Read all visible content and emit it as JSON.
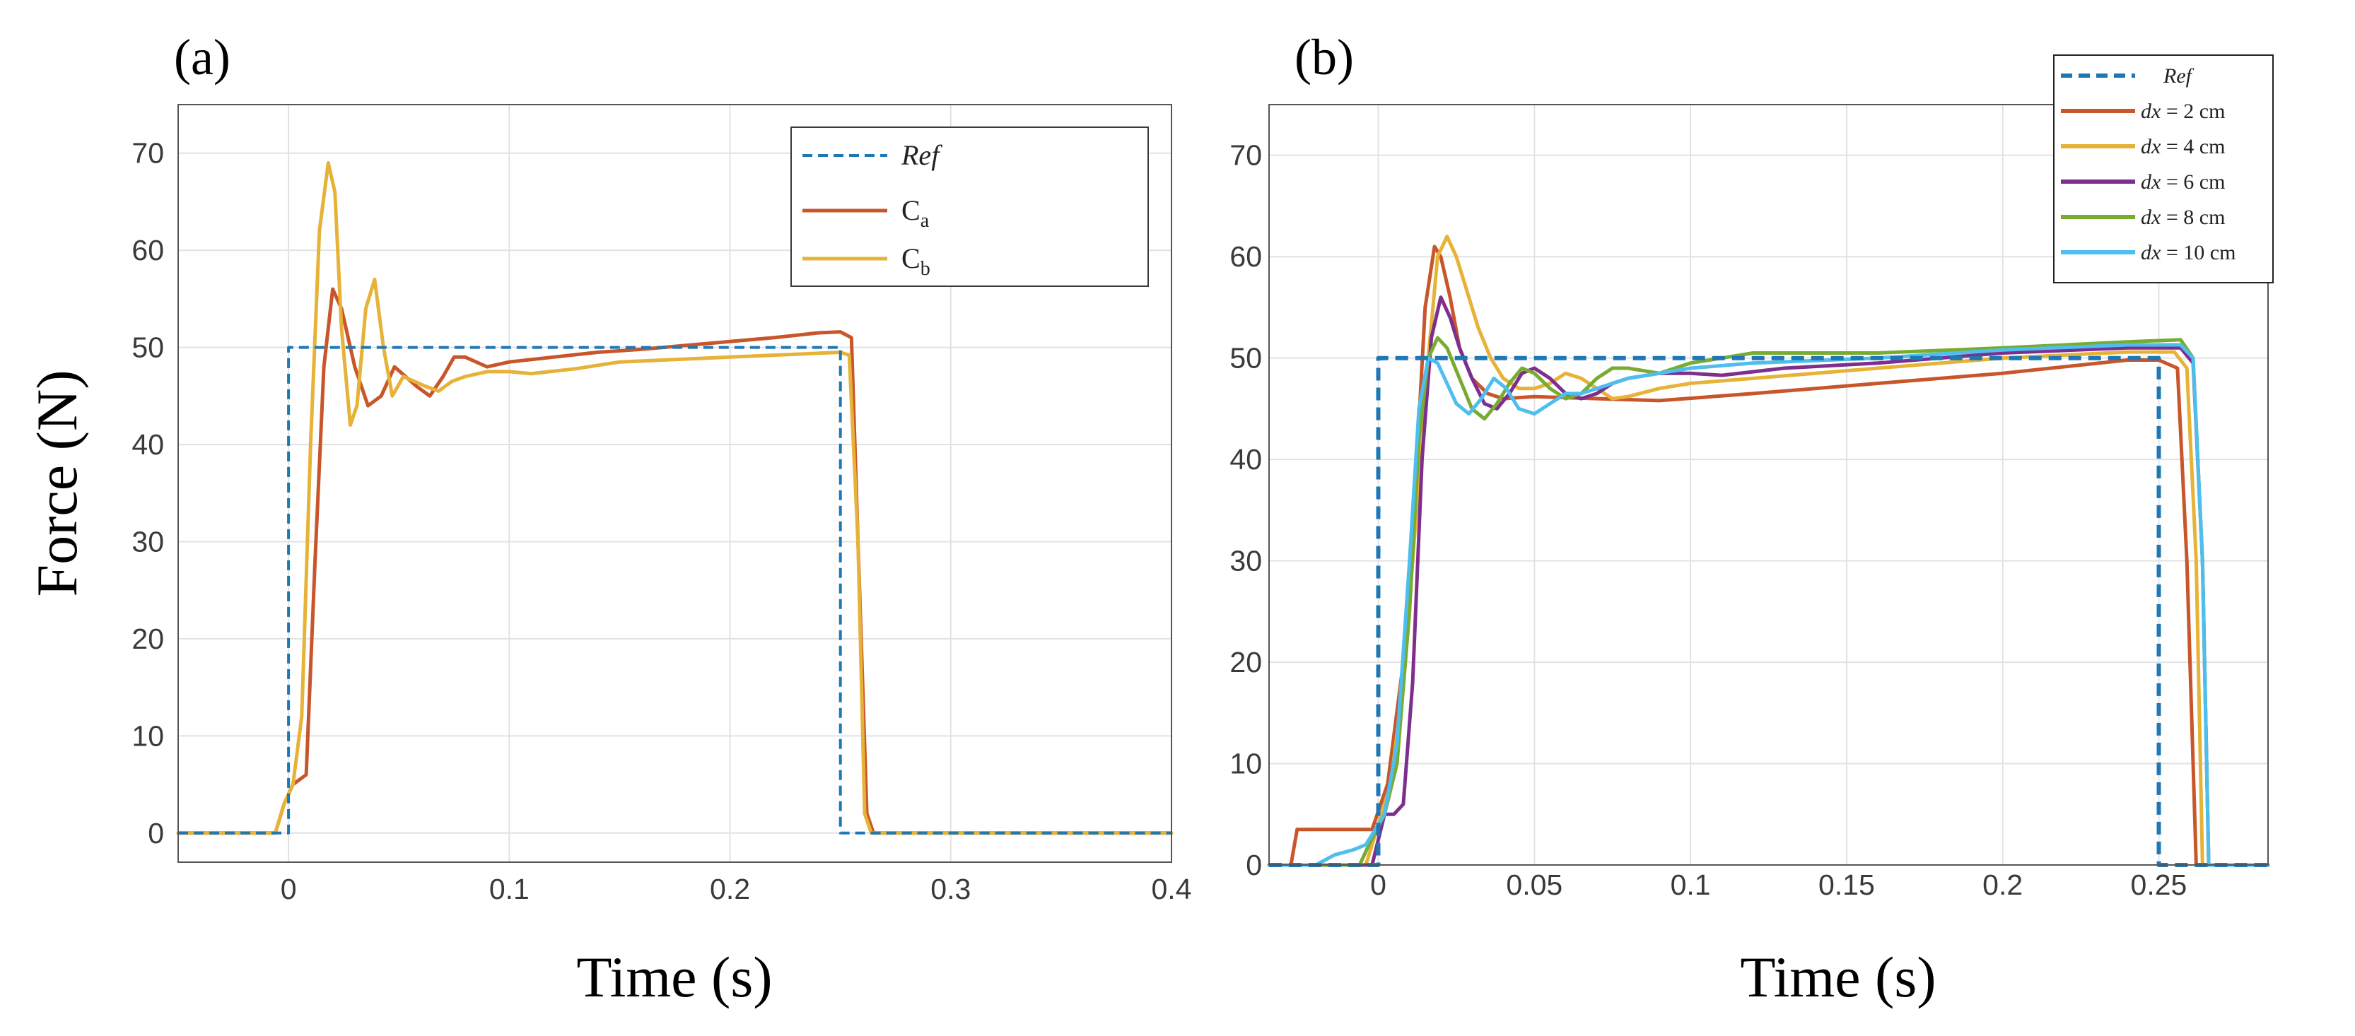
{
  "colors": {
    "ref": "#1f77b4",
    "orange": "#c8562a",
    "yellow": "#e6b338",
    "purple": "#7e2f8e",
    "green": "#77ac30",
    "cyan": "#4dbeee",
    "grid": "#e2e2e2",
    "axis": "#555555"
  },
  "chart_data": [
    {
      "type": "line",
      "panel_label": "(a)",
      "xlabel": "Time (s)",
      "ylabel": "Force (N)",
      "xlim": [
        -0.05,
        0.4
      ],
      "ylim": [
        -3,
        75
      ],
      "xticks": [
        0,
        0.1,
        0.2,
        0.3,
        0.4
      ],
      "xtick_labels": [
        "0",
        "0.1",
        "0.2",
        "0.3",
        "0.4"
      ],
      "yticks": [
        0,
        10,
        20,
        30,
        40,
        50,
        60,
        70
      ],
      "ytick_labels": [
        "0",
        "10",
        "20",
        "30",
        "40",
        "50",
        "60",
        "70"
      ],
      "grid": true,
      "legend_position": "top-right",
      "series": [
        {
          "name": "Ref",
          "legend": "Ref",
          "color_key": "ref",
          "dash": true,
          "width": 4,
          "italic": true,
          "x": [
            -0.05,
            0,
            0,
            0.25,
            0.25,
            0.4
          ],
          "y": [
            0,
            0,
            50,
            50,
            0,
            0
          ]
        },
        {
          "name": "Ca",
          "legend": "C",
          "sub": "a",
          "color_key": "orange",
          "dash": false,
          "width": 5,
          "x": [
            -0.05,
            -0.006,
            -0.002,
            0.002,
            0.008,
            0.012,
            0.016,
            0.02,
            0.024,
            0.03,
            0.036,
            0.042,
            0.048,
            0.053,
            0.058,
            0.064,
            0.07,
            0.075,
            0.08,
            0.09,
            0.1,
            0.12,
            0.14,
            0.16,
            0.18,
            0.2,
            0.22,
            0.24,
            0.25,
            0.255,
            0.258,
            0.262,
            0.265,
            0.4
          ],
          "y": [
            0,
            0,
            3,
            5,
            6,
            28,
            48,
            56,
            54,
            48,
            44,
            45,
            48,
            47,
            46,
            45,
            47,
            49,
            49,
            48,
            48.5,
            49,
            49.5,
            49.8,
            50.2,
            50.6,
            51,
            51.5,
            51.6,
            51,
            30,
            2,
            0,
            0
          ]
        },
        {
          "name": "Cb",
          "legend": "C",
          "sub": "b",
          "color_key": "yellow",
          "dash": false,
          "width": 5,
          "x": [
            -0.05,
            -0.006,
            -0.002,
            0.002,
            0.006,
            0.01,
            0.014,
            0.018,
            0.021,
            0.024,
            0.028,
            0.031,
            0.035,
            0.039,
            0.043,
            0.047,
            0.052,
            0.057,
            0.062,
            0.068,
            0.074,
            0.08,
            0.09,
            0.1,
            0.11,
            0.13,
            0.15,
            0.2,
            0.25,
            0.254,
            0.258,
            0.261,
            0.264,
            0.4
          ],
          "y": [
            0,
            0,
            3,
            5,
            12,
            40,
            62,
            69,
            66,
            52,
            42,
            44,
            54,
            57,
            50,
            45,
            47,
            46.5,
            46,
            45.5,
            46.5,
            47,
            47.5,
            47.5,
            47.3,
            47.8,
            48.5,
            49,
            49.5,
            49.2,
            30,
            2,
            0,
            0
          ]
        }
      ]
    },
    {
      "type": "line",
      "panel_label": "(b)",
      "xlabel": "Time (s)",
      "ylabel": "",
      "xlim": [
        -0.035,
        0.285
      ],
      "ylim": [
        0,
        75
      ],
      "xticks": [
        0,
        0.05,
        0.1,
        0.15,
        0.2,
        0.25
      ],
      "xtick_labels": [
        "0",
        "0.05",
        "0.1",
        "0.15",
        "0.2",
        "0.25"
      ],
      "yticks": [
        0,
        10,
        20,
        30,
        40,
        50,
        60,
        70
      ],
      "ytick_labels": [
        "0",
        "10",
        "20",
        "30",
        "40",
        "50",
        "60",
        "70"
      ],
      "grid": true,
      "legend_position": "top-right",
      "series": [
        {
          "name": "Ref",
          "legend": "Ref",
          "color_key": "ref",
          "dash": true,
          "width": 6,
          "italic": true,
          "x": [
            -0.035,
            0,
            0,
            0.25,
            0.25,
            0.285
          ],
          "y": [
            0,
            0,
            50,
            50,
            0,
            0
          ]
        },
        {
          "name": "dx = 2 cm",
          "legend_it": "dx",
          "legend_rest": " = 2 cm",
          "color_key": "orange",
          "dash": false,
          "width": 5,
          "x": [
            -0.035,
            -0.028,
            -0.026,
            -0.01,
            -0.002,
            0.003,
            0.008,
            0.012,
            0.015,
            0.018,
            0.02,
            0.023,
            0.026,
            0.03,
            0.035,
            0.04,
            0.05,
            0.07,
            0.09,
            0.12,
            0.16,
            0.2,
            0.24,
            0.25,
            0.256,
            0.259,
            0.262,
            0.285
          ],
          "y": [
            0,
            0,
            3.5,
            3.5,
            3.5,
            8,
            20,
            38,
            55,
            61,
            60,
            56,
            51,
            48,
            46.5,
            46,
            46.2,
            46,
            45.8,
            46.5,
            47.5,
            48.5,
            49.8,
            49.8,
            49,
            30,
            0,
            0
          ]
        },
        {
          "name": "dx = 4 cm",
          "legend_it": "dx",
          "legend_rest": " = 4 cm",
          "color_key": "yellow",
          "dash": false,
          "width": 5,
          "x": [
            -0.035,
            -0.004,
            0,
            0.004,
            0.008,
            0.012,
            0.016,
            0.019,
            0.022,
            0.025,
            0.028,
            0.032,
            0.036,
            0.04,
            0.045,
            0.05,
            0.055,
            0.06,
            0.065,
            0.07,
            0.075,
            0.08,
            0.09,
            0.1,
            0.12,
            0.16,
            0.2,
            0.24,
            0.255,
            0.259,
            0.262,
            0.264,
            0.285
          ],
          "y": [
            0,
            0,
            4,
            8,
            18,
            34,
            50,
            60,
            62,
            60,
            57,
            53,
            50,
            48,
            47,
            47,
            47.5,
            48.5,
            48,
            47,
            46,
            46.2,
            47,
            47.5,
            48,
            49,
            50,
            50.6,
            50.6,
            49,
            30,
            0,
            0
          ]
        },
        {
          "name": "dx = 6 cm",
          "legend_it": "dx",
          "legend_rest": " = 6 cm",
          "color_key": "purple",
          "dash": false,
          "width": 5,
          "x": [
            -0.035,
            -0.002,
            0.002,
            0.005,
            0.008,
            0.011,
            0.014,
            0.017,
            0.02,
            0.023,
            0.026,
            0.03,
            0.034,
            0.038,
            0.042,
            0.046,
            0.05,
            0.055,
            0.06,
            0.065,
            0.07,
            0.075,
            0.08,
            0.09,
            0.1,
            0.11,
            0.13,
            0.16,
            0.2,
            0.24,
            0.257,
            0.261,
            0.264,
            0.266,
            0.285
          ],
          "y": [
            0,
            0,
            5,
            5,
            6,
            18,
            40,
            52,
            56,
            54,
            51,
            48,
            45.5,
            45,
            46.5,
            48.5,
            49,
            48,
            46.5,
            46,
            46.5,
            47.5,
            48,
            48.5,
            48.5,
            48.3,
            49,
            49.5,
            50.5,
            51,
            51,
            49.5,
            30,
            0,
            0
          ]
        },
        {
          "name": "dx = 8 cm",
          "legend_it": "dx",
          "legend_rest": " = 8 cm",
          "color_key": "green",
          "dash": false,
          "width": 5,
          "x": [
            -0.035,
            -0.01,
            -0.006,
            -0.003,
            0.002,
            0.006,
            0.01,
            0.013,
            0.016,
            0.019,
            0.022,
            0.026,
            0.03,
            0.034,
            0.038,
            0.042,
            0.046,
            0.05,
            0.055,
            0.06,
            0.065,
            0.07,
            0.075,
            0.08,
            0.09,
            0.1,
            0.11,
            0.12,
            0.16,
            0.2,
            0.24,
            0.257,
            0.261,
            0.264,
            0.266,
            0.285
          ],
          "y": [
            0,
            0,
            0,
            2,
            5,
            10,
            25,
            42,
            50,
            52,
            51,
            48,
            45,
            44,
            45.5,
            47.5,
            49,
            48.5,
            47,
            46,
            46.5,
            48,
            49,
            49,
            48.5,
            49.5,
            50,
            50.5,
            50.5,
            51,
            51.6,
            51.8,
            50,
            30,
            0,
            0
          ]
        },
        {
          "name": "dx = 10 cm",
          "legend_it": "dx",
          "legend_rest": " = 10 cm",
          "color_key": "cyan",
          "dash": false,
          "width": 5,
          "x": [
            -0.035,
            -0.02,
            -0.014,
            -0.008,
            -0.004,
            0.002,
            0.006,
            0.01,
            0.013,
            0.016,
            0.019,
            0.022,
            0.025,
            0.029,
            0.033,
            0.037,
            0.041,
            0.045,
            0.05,
            0.055,
            0.06,
            0.065,
            0.07,
            0.08,
            0.09,
            0.1,
            0.12,
            0.16,
            0.2,
            0.24,
            0.257,
            0.261,
            0.264,
            0.266,
            0.285
          ],
          "y": [
            0,
            0,
            1,
            1.5,
            2,
            5,
            12,
            30,
            45,
            50,
            49.5,
            47.5,
            45.5,
            44.5,
            46,
            48,
            47,
            45,
            44.5,
            45.5,
            46.5,
            46.5,
            47,
            48,
            48.5,
            49,
            49.5,
            50,
            50.8,
            51.3,
            51.3,
            50,
            30,
            0,
            0
          ]
        }
      ]
    }
  ]
}
